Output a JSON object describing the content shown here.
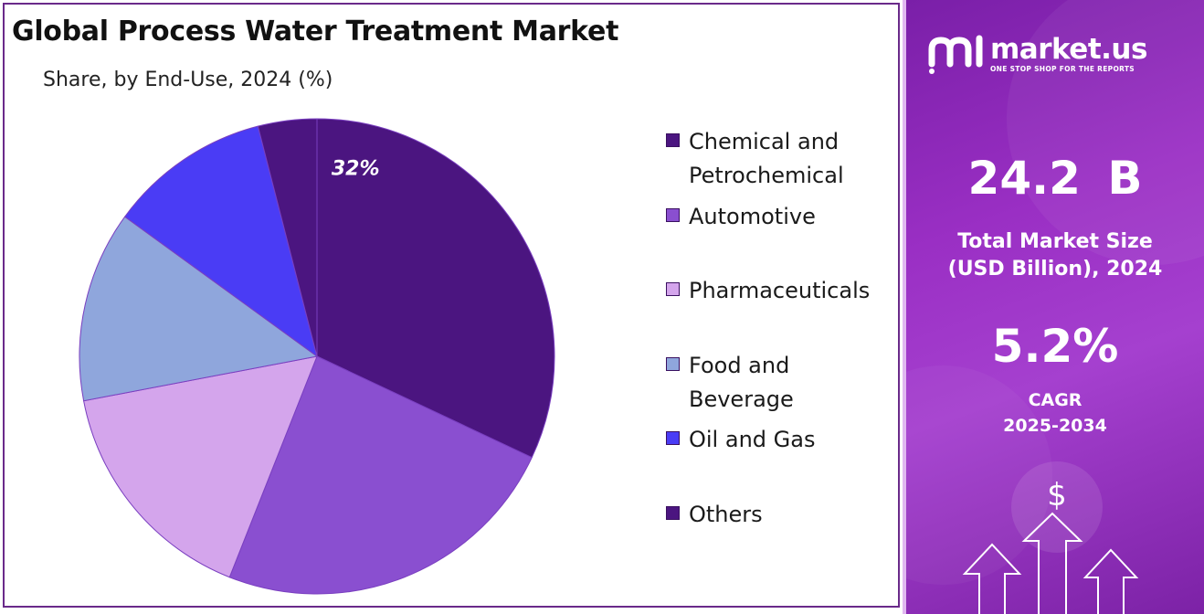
{
  "title": "Global Process Water Treatment Market",
  "subtitle": "Share, by End-Use, 2024 (%)",
  "chart_data": {
    "type": "pie",
    "title": "Global Process Water Treatment Market",
    "subtitle": "Share, by End-Use, 2024 (%)",
    "categories": [
      "Chemical and Petrochemical",
      "Automotive",
      "Pharmaceuticals",
      "Food and Beverage",
      "Oil and Gas",
      "Others"
    ],
    "values": [
      32,
      24,
      16,
      13,
      11,
      4
    ],
    "data_labels": [
      "32%",
      "",
      "",
      "",
      "",
      ""
    ],
    "colors": [
      "#4b1580",
      "#8a4fd0",
      "#d4a5ec",
      "#8fa6dc",
      "#4a3cf5",
      "#4b1580"
    ],
    "start_angle_deg": 0,
    "direction": "clockwise",
    "legend_position": "right"
  },
  "legend": {
    "items": [
      {
        "label": "Chemical and Petrochemical",
        "color": "#4b1580"
      },
      {
        "label": "Automotive",
        "color": "#8a4fd0"
      },
      {
        "label": "Pharmaceuticals",
        "color": "#d4a5ec"
      },
      {
        "label": "Food and Beverage",
        "color": "#8fa6dc"
      },
      {
        "label": "Oil and Gas",
        "color": "#4a3cf5"
      },
      {
        "label": "Others",
        "color": "#4b1580"
      }
    ]
  },
  "brand": {
    "name": "market.us",
    "tagline": "ONE STOP SHOP FOR THE REPORTS"
  },
  "stats": {
    "market_size_value": "24.2 B",
    "market_size_label_line1": "Total Market Size",
    "market_size_label_line2": "(USD Billion), 2024",
    "cagr_value": "5.2%",
    "cagr_label_line1": "CAGR",
    "cagr_label_line2": "2025-2034"
  },
  "decoration": {
    "currency_symbol": "$",
    "icons": [
      "market-us-logo-icon",
      "dollar-coin-icon",
      "up-arrow-icon"
    ]
  }
}
